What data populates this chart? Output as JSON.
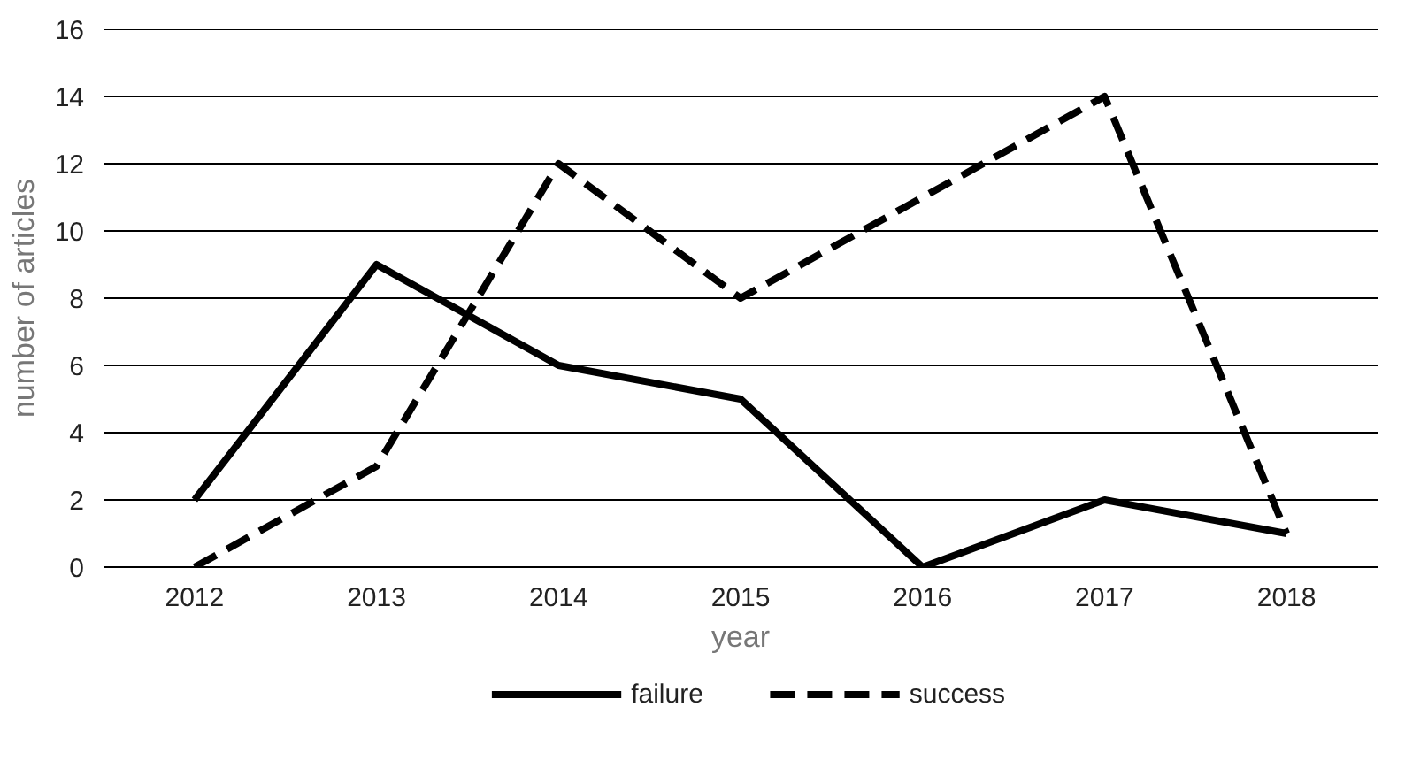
{
  "chart_data": {
    "type": "line",
    "xlabel": "year",
    "ylabel": "number of articles",
    "categories": [
      "2012",
      "2013",
      "2014",
      "2015",
      "2016",
      "2017",
      "2018"
    ],
    "series": [
      {
        "name": "failure",
        "color": "#000000",
        "values": [
          2,
          9,
          6,
          5,
          0,
          2,
          1
        ],
        "line_style": "solid"
      },
      {
        "name": "success",
        "color": "#000000",
        "values": [
          0,
          3,
          12,
          8,
          11,
          14,
          1
        ],
        "line_style": "dashed"
      }
    ],
    "ylim": [
      0,
      16
    ],
    "yticks": [
      0,
      2,
      4,
      6,
      8,
      10,
      12,
      14,
      16
    ],
    "grid": "y",
    "legend": "bottom",
    "marker": "none"
  }
}
